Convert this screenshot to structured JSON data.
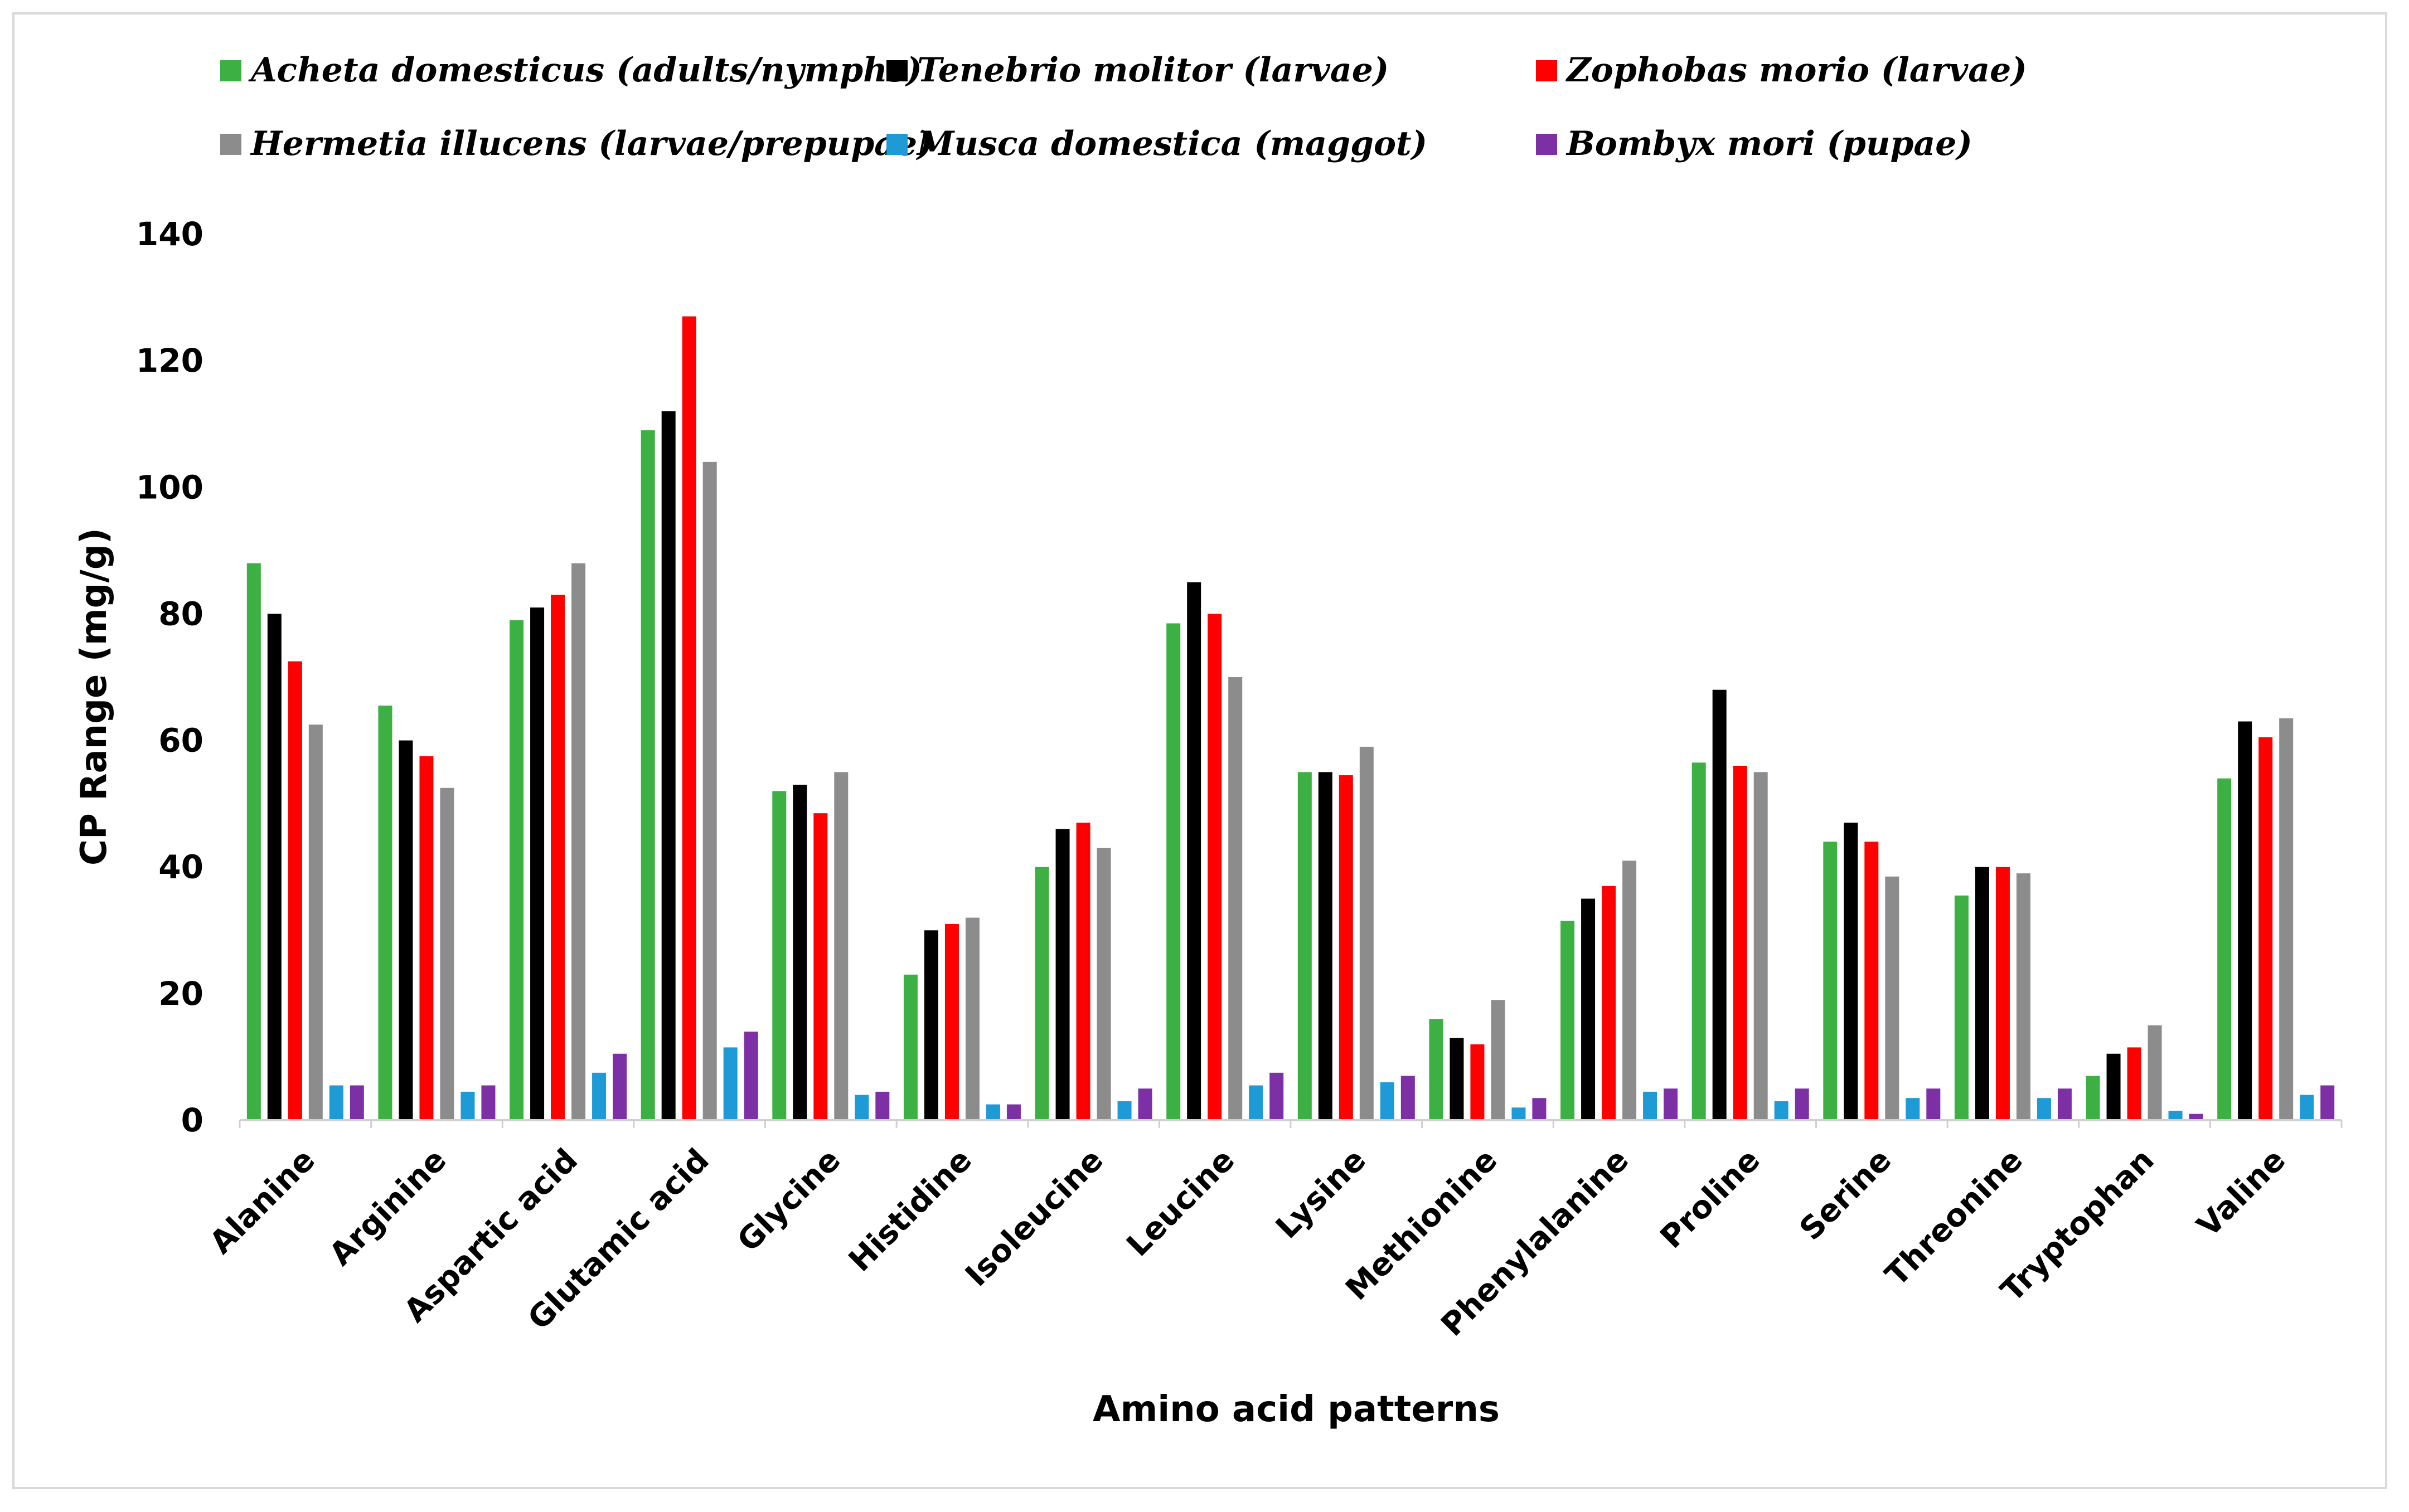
{
  "chart_data": {
    "type": "bar",
    "title": "",
    "xlabel": "Amino acid patterns",
    "ylabel": "CP Range (mg/g)",
    "ylim": [
      0,
      140
    ],
    "yticks": [
      "0",
      "20",
      "40",
      "60",
      "80",
      "100",
      "120",
      "140"
    ],
    "ytick_values": [
      0,
      20,
      40,
      60,
      80,
      100,
      120,
      140
    ],
    "grid": false,
    "legend_position": "top",
    "categories": [
      "Alanine",
      "Arginine",
      "Aspartic acid",
      "Glutamic acid",
      "Glycine",
      "Histidine",
      "Isoleucine",
      "Leucine",
      "Lysine",
      "Methionine",
      "Phenylalanine",
      "Proline",
      "Serine",
      "Threonine",
      "Tryptophan",
      "Valine"
    ],
    "series": [
      {
        "name": "Acheta domesticus (adults/nymphs)",
        "color": "#3cb043",
        "values": [
          88,
          65.5,
          79,
          109,
          52,
          23,
          40,
          78.5,
          55,
          16,
          31.5,
          56.5,
          44,
          35.5,
          7,
          54
        ]
      },
      {
        "name": "Tenebrio molitor (larvae)",
        "color": "#000000",
        "values": [
          80,
          60,
          81,
          112,
          53,
          30,
          46,
          85,
          55,
          13,
          35,
          68,
          47,
          40,
          10.5,
          63
        ]
      },
      {
        "name": "Zophobas morio (larvae)",
        "color": "#ff0000",
        "values": [
          72.5,
          57.5,
          83,
          127,
          48.5,
          31,
          47,
          80,
          54.5,
          12,
          37,
          56,
          44,
          40,
          11.5,
          60.5
        ]
      },
      {
        "name": "Hermetia illucens (larvae/prepupae)",
        "color": "#8c8c8c",
        "values": [
          62.5,
          52.5,
          88,
          104,
          55,
          32,
          43,
          70,
          59,
          19,
          41,
          55,
          38.5,
          39,
          15,
          63.5
        ]
      },
      {
        "name": "Musca domestica (maggot)",
        "color": "#1e9ad6",
        "values": [
          5.5,
          4.5,
          7.5,
          11.5,
          4,
          2.5,
          3,
          5.5,
          6,
          2,
          4.5,
          3,
          3.5,
          3.5,
          1.5,
          4
        ]
      },
      {
        "name": "Bombyx mori (pupae)",
        "color": "#7d2fa5",
        "values": [
          5.5,
          5.5,
          10.5,
          14,
          4.5,
          2.5,
          5,
          7.5,
          7,
          3.5,
          5,
          5,
          5,
          5,
          1,
          5.5
        ]
      }
    ]
  }
}
